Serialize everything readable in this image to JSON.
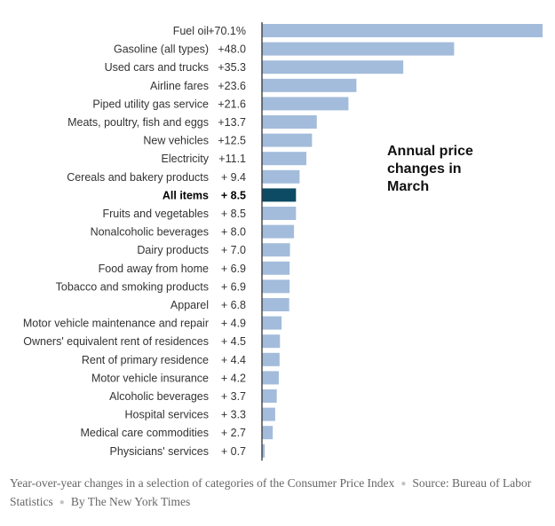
{
  "chart_data": {
    "type": "bar",
    "orientation": "horizontal",
    "title": "Annual price changes in March",
    "title_lines": [
      "Annual price",
      "changes in",
      "March"
    ],
    "categories": [
      "Fuel oil",
      "Gasoline (all types)",
      "Used cars and trucks",
      "Airline fares",
      "Piped utility gas service",
      "Meats, poultry, fish and eggs",
      "New vehicles",
      "Electricity",
      "Cereals and bakery products",
      "All items",
      "Fruits and vegetables",
      "Nonalcoholic beverages",
      "Dairy products",
      "Food away from home",
      "Tobacco and smoking products",
      "Apparel",
      "Motor vehicle maintenance and repair",
      "Owners' equivalent rent of residences",
      "Rent of primary residence",
      "Motor vehicle insurance",
      "Alcoholic beverages",
      "Hospital services",
      "Medical care commodities",
      "Physicians' services"
    ],
    "values": [
      70.1,
      48.0,
      35.3,
      23.6,
      21.6,
      13.7,
      12.5,
      11.1,
      9.4,
      8.5,
      8.5,
      8.0,
      7.0,
      6.9,
      6.9,
      6.8,
      4.9,
      4.5,
      4.4,
      4.2,
      3.7,
      3.3,
      2.7,
      0.7
    ],
    "value_labels": [
      "+70.1%",
      "+48.0",
      "+35.3",
      "+23.6",
      "+21.6",
      "+13.7",
      "+12.5",
      "+11.1",
      "+ 9.4",
      "+ 8.5",
      "+ 8.5",
      "+ 8.0",
      "+ 7.0",
      "+ 6.9",
      "+ 6.9",
      "+ 6.8",
      "+ 4.9",
      "+ 4.5",
      "+ 4.4",
      "+ 4.2",
      "+ 3.7",
      "+ 3.3",
      "+ 2.7",
      "+ 0.7"
    ],
    "highlight": "All items",
    "xlim": [
      0,
      70.1
    ],
    "xlabel": "",
    "ylabel": "",
    "grid": false,
    "colors": {
      "bar": "#a3bcdb",
      "highlight": "#0d4a63",
      "axis": "#333333"
    }
  },
  "caption": {
    "description": "Year-over-year changes in a selection of categories of the Consumer Price Index",
    "source": "Source: Bureau of Labor Statistics",
    "credit": "By The New York Times"
  }
}
